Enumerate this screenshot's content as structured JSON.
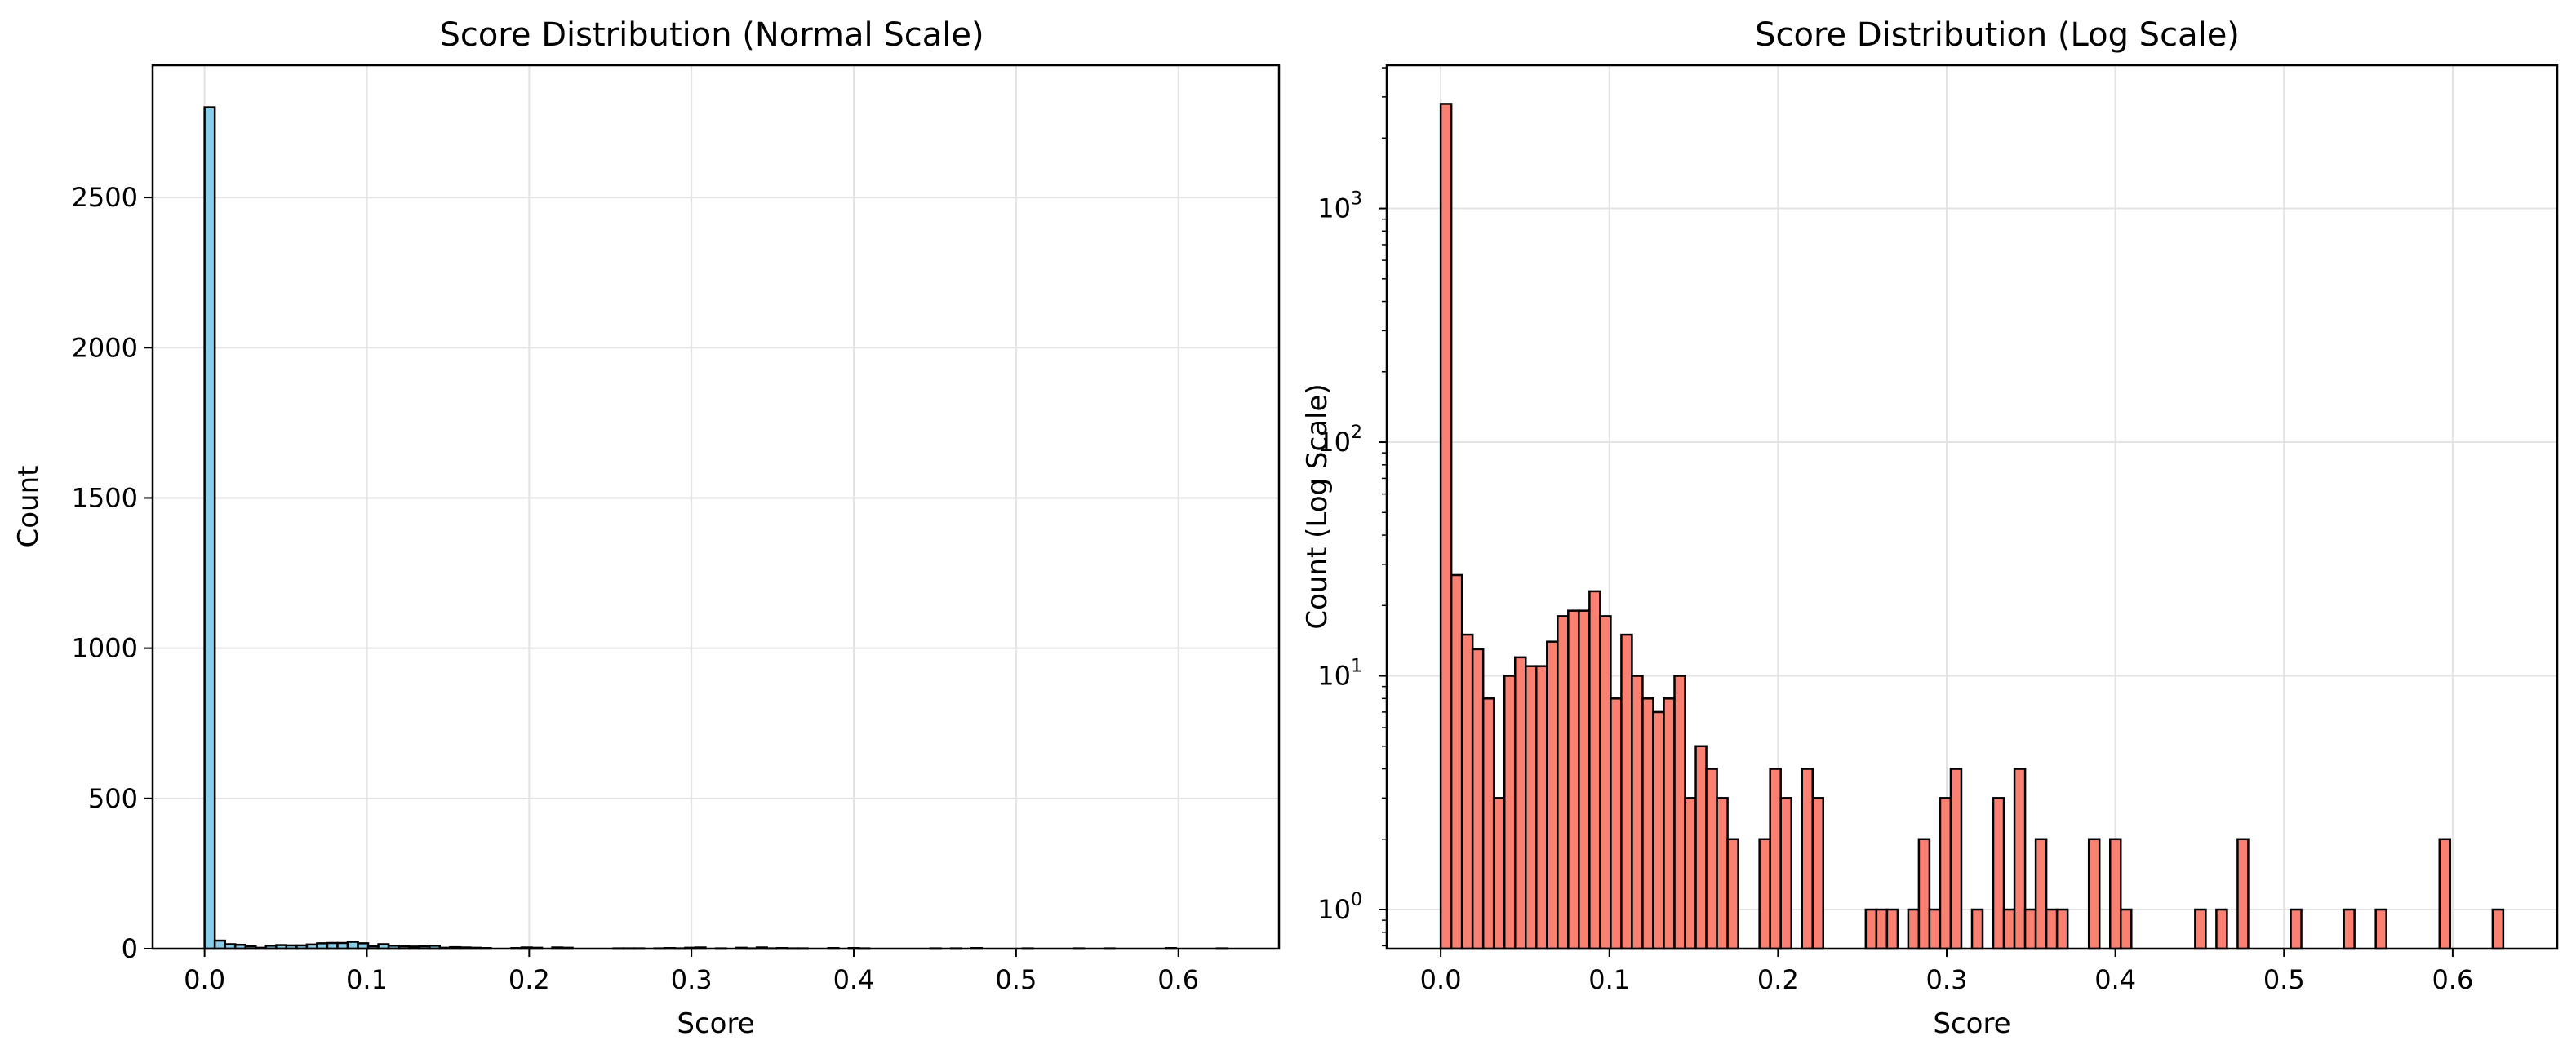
{
  "chart_data": [
    {
      "type": "bar",
      "title": "Score Distribution (Normal Scale)",
      "xlabel": "Score",
      "ylabel": "Count",
      "xlim": [
        -0.032,
        0.662
      ],
      "ylim": [
        0,
        2940
      ],
      "yscale": "linear",
      "grid": true,
      "bar_color": "#87ceeb",
      "edge_color": "#000000",
      "x_ticks": [
        "0.0",
        "0.1",
        "0.2",
        "0.3",
        "0.4",
        "0.5",
        "0.6"
      ],
      "y_ticks": [
        "0",
        "500",
        "1000",
        "1500",
        "2000",
        "2500"
      ],
      "bins": [
        0.0,
        0.0063,
        0.0126,
        0.0189,
        0.0252,
        0.0315,
        0.0378,
        0.0441,
        0.0504,
        0.0567,
        0.063,
        0.0693,
        0.0756,
        0.0819,
        0.0882,
        0.0945,
        0.1008,
        0.1071,
        0.1134,
        0.1197,
        0.126,
        0.1323,
        0.1386,
        0.1449,
        0.1512,
        0.1575,
        0.1638,
        0.1701,
        0.1764,
        0.1827,
        0.189,
        0.1953,
        0.2016,
        0.2079,
        0.2142,
        0.2205,
        0.2268,
        0.2331,
        0.2394,
        0.2457,
        0.252,
        0.2583,
        0.2646,
        0.2709,
        0.2772,
        0.2835,
        0.2898,
        0.2961,
        0.3024,
        0.3087,
        0.315,
        0.3213,
        0.3276,
        0.3339,
        0.3402,
        0.3465,
        0.3528,
        0.3591,
        0.3654,
        0.3717,
        0.378,
        0.3843,
        0.3906,
        0.3969,
        0.4032,
        0.4095,
        0.4158,
        0.4221,
        0.4284,
        0.4347,
        0.441,
        0.4473,
        0.4536,
        0.4599,
        0.4662,
        0.4725,
        0.4788,
        0.4851,
        0.4914,
        0.4977,
        0.504,
        0.5103,
        0.5166,
        0.5229,
        0.5292,
        0.5355,
        0.5418,
        0.5481,
        0.5544,
        0.5607,
        0.567,
        0.5733,
        0.5796,
        0.5859,
        0.5922,
        0.5985,
        0.6048,
        0.6111,
        0.6174,
        0.6237,
        0.63
      ],
      "counts": [
        2800,
        27,
        15,
        13,
        8,
        3,
        10,
        12,
        11,
        11,
        14,
        18,
        19,
        19,
        23,
        18,
        8,
        15,
        10,
        8,
        7,
        8,
        10,
        3,
        5,
        4,
        3,
        2,
        0,
        0,
        2,
        4,
        3,
        0,
        4,
        3,
        0,
        0,
        0,
        0,
        1,
        1,
        1,
        0,
        1,
        2,
        1,
        3,
        4,
        0,
        1,
        0,
        3,
        1,
        4,
        1,
        2,
        1,
        1,
        0,
        0,
        2,
        0,
        2,
        1,
        0,
        0,
        0,
        0,
        0,
        0,
        1,
        0,
        1,
        0,
        2,
        0,
        0,
        0,
        0,
        1,
        0,
        0,
        0,
        0,
        1,
        0,
        0,
        1,
        0,
        0,
        0,
        0,
        0,
        2,
        0,
        0,
        0,
        0,
        1
      ]
    },
    {
      "type": "bar",
      "title": "Score Distribution (Log Scale)",
      "xlabel": "Score",
      "ylabel": "Count (Log Scale)",
      "xlim": [
        -0.032,
        0.662
      ],
      "ylim": [
        0.68,
        4100
      ],
      "yscale": "log",
      "grid": true,
      "bar_color": "#fa8072",
      "edge_color": "#000000",
      "x_ticks": [
        "0.0",
        "0.1",
        "0.2",
        "0.3",
        "0.4",
        "0.5",
        "0.6"
      ],
      "y_ticks": [
        {
          "base": "10",
          "exp": "0"
        },
        {
          "base": "10",
          "exp": "1"
        },
        {
          "base": "10",
          "exp": "2"
        },
        {
          "base": "10",
          "exp": "3"
        }
      ],
      "bins": [
        0.0,
        0.0063,
        0.0126,
        0.0189,
        0.0252,
        0.0315,
        0.0378,
        0.0441,
        0.0504,
        0.0567,
        0.063,
        0.0693,
        0.0756,
        0.0819,
        0.0882,
        0.0945,
        0.1008,
        0.1071,
        0.1134,
        0.1197,
        0.126,
        0.1323,
        0.1386,
        0.1449,
        0.1512,
        0.1575,
        0.1638,
        0.1701,
        0.1764,
        0.1827,
        0.189,
        0.1953,
        0.2016,
        0.2079,
        0.2142,
        0.2205,
        0.2268,
        0.2331,
        0.2394,
        0.2457,
        0.252,
        0.2583,
        0.2646,
        0.2709,
        0.2772,
        0.2835,
        0.2898,
        0.2961,
        0.3024,
        0.3087,
        0.315,
        0.3213,
        0.3276,
        0.3339,
        0.3402,
        0.3465,
        0.3528,
        0.3591,
        0.3654,
        0.3717,
        0.378,
        0.3843,
        0.3906,
        0.3969,
        0.4032,
        0.4095,
        0.4158,
        0.4221,
        0.4284,
        0.4347,
        0.441,
        0.4473,
        0.4536,
        0.4599,
        0.4662,
        0.4725,
        0.4788,
        0.4851,
        0.4914,
        0.4977,
        0.504,
        0.5103,
        0.5166,
        0.5229,
        0.5292,
        0.5355,
        0.5418,
        0.5481,
        0.5544,
        0.5607,
        0.567,
        0.5733,
        0.5796,
        0.5859,
        0.5922,
        0.5985,
        0.6048,
        0.6111,
        0.6174,
        0.6237,
        0.63
      ],
      "counts": [
        2800,
        27,
        15,
        13,
        8,
        3,
        10,
        12,
        11,
        11,
        14,
        18,
        19,
        19,
        23,
        18,
        8,
        15,
        10,
        8,
        7,
        8,
        10,
        3,
        5,
        4,
        3,
        2,
        0,
        0,
        2,
        4,
        3,
        0,
        4,
        3,
        0,
        0,
        0,
        0,
        1,
        1,
        1,
        0,
        1,
        2,
        1,
        3,
        4,
        0,
        1,
        0,
        3,
        1,
        4,
        1,
        2,
        1,
        1,
        0,
        0,
        2,
        0,
        2,
        1,
        0,
        0,
        0,
        0,
        0,
        0,
        1,
        0,
        1,
        0,
        2,
        0,
        0,
        0,
        0,
        1,
        0,
        0,
        0,
        0,
        1,
        0,
        0,
        1,
        0,
        0,
        0,
        0,
        0,
        2,
        0,
        0,
        0,
        0,
        1
      ]
    }
  ]
}
